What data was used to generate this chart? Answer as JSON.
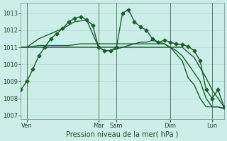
{
  "background_color": "#cceee8",
  "grid_color": "#aaddcc",
  "line_color": "#1a5e2a",
  "xlabel": "Pression niveau de la mer( hPa )",
  "ylim": [
    1006.8,
    1013.6
  ],
  "yticks": [
    1007,
    1008,
    1009,
    1010,
    1011,
    1012,
    1013
  ],
  "x_tick_labels": [
    "Ven",
    "Mar",
    "Sam",
    "Dim",
    "Lun"
  ],
  "x_tick_positions": [
    2,
    26,
    32,
    50,
    64
  ],
  "xlim": [
    0,
    68
  ],
  "series": [
    {
      "x": [
        0,
        2,
        4,
        6,
        8,
        10,
        12,
        14,
        16,
        18,
        20,
        22,
        24,
        26,
        28,
        30,
        32,
        34,
        36,
        38,
        40,
        42,
        44,
        46,
        48,
        50,
        52,
        54,
        56,
        58,
        60,
        62,
        64,
        66,
        68
      ],
      "y": [
        1011.0,
        1011.0,
        1011.0,
        1011.0,
        1011.0,
        1011.0,
        1011.0,
        1011.0,
        1011.0,
        1011.0,
        1011.0,
        1011.0,
        1011.0,
        1011.0,
        1011.0,
        1011.0,
        1011.0,
        1011.0,
        1011.0,
        1011.0,
        1011.0,
        1011.0,
        1011.0,
        1011.0,
        1011.0,
        1011.0,
        1011.0,
        1011.0,
        1010.7,
        1010.4,
        1009.8,
        1009.2,
        1008.5,
        1008.0,
        1007.5
      ],
      "marker": false,
      "lw": 1.0
    },
    {
      "x": [
        0,
        2,
        4,
        6,
        8,
        10,
        12,
        14,
        16,
        18,
        20,
        22,
        24,
        26,
        28,
        30,
        32,
        34,
        36,
        38,
        40,
        42,
        44,
        46,
        48,
        50,
        52,
        54,
        56,
        58,
        60,
        62,
        64,
        66,
        68
      ],
      "y": [
        1011.0,
        1011.0,
        1011.05,
        1011.1,
        1011.1,
        1011.1,
        1011.1,
        1011.1,
        1011.1,
        1011.15,
        1011.2,
        1011.2,
        1011.2,
        1011.2,
        1011.2,
        1011.2,
        1011.2,
        1011.2,
        1011.2,
        1011.2,
        1011.2,
        1011.2,
        1011.2,
        1011.2,
        1011.2,
        1011.0,
        1010.8,
        1010.5,
        1010.0,
        1009.5,
        1009.0,
        1008.0,
        1007.5,
        1007.5,
        1007.4
      ],
      "marker": false,
      "lw": 1.0
    },
    {
      "x": [
        2,
        6,
        10,
        14,
        18,
        22,
        26,
        28,
        30,
        32,
        34,
        36,
        38,
        40,
        42,
        44,
        46,
        48,
        50,
        52,
        54,
        56,
        58,
        60,
        62,
        64,
        66,
        68
      ],
      "y": [
        1011.0,
        1011.5,
        1011.8,
        1012.1,
        1012.5,
        1012.6,
        1011.0,
        1010.8,
        1010.8,
        1010.9,
        1011.0,
        1011.1,
        1011.2,
        1011.3,
        1011.3,
        1011.4,
        1011.3,
        1011.2,
        1011.0,
        1010.6,
        1010.2,
        1009.2,
        1008.8,
        1008.0,
        1007.5,
        1007.5,
        1007.5,
        1007.4
      ],
      "marker": false,
      "lw": 1.0
    },
    {
      "x": [
        0,
        2,
        4,
        6,
        8,
        10,
        12,
        14,
        16,
        18,
        20,
        22,
        24,
        26,
        28,
        30,
        32,
        34,
        36,
        38,
        40,
        42,
        44,
        46,
        48,
        50,
        52,
        54,
        56,
        58,
        60,
        62,
        64,
        66,
        68
      ],
      "y": [
        1008.5,
        1009.0,
        1009.7,
        1010.5,
        1011.0,
        1011.5,
        1011.8,
        1012.1,
        1012.5,
        1012.7,
        1012.8,
        1012.6,
        1012.3,
        1011.0,
        1010.8,
        1010.8,
        1011.0,
        1013.0,
        1013.2,
        1012.5,
        1012.2,
        1012.0,
        1011.5,
        1011.3,
        1011.4,
        1011.3,
        1011.2,
        1011.15,
        1011.05,
        1010.8,
        1010.2,
        1008.5,
        1008.0,
        1008.5,
        1007.5
      ],
      "marker": true,
      "lw": 1.0
    }
  ],
  "vlines": [
    2,
    26,
    32,
    50,
    64
  ],
  "vline_color": "#556655",
  "marker_style": "D",
  "marker_size": 2.5,
  "tick_color": "#2a4a2a",
  "tick_fontsize": 6,
  "xlabel_fontsize": 7,
  "xlabel_color": "#1a4a1a"
}
